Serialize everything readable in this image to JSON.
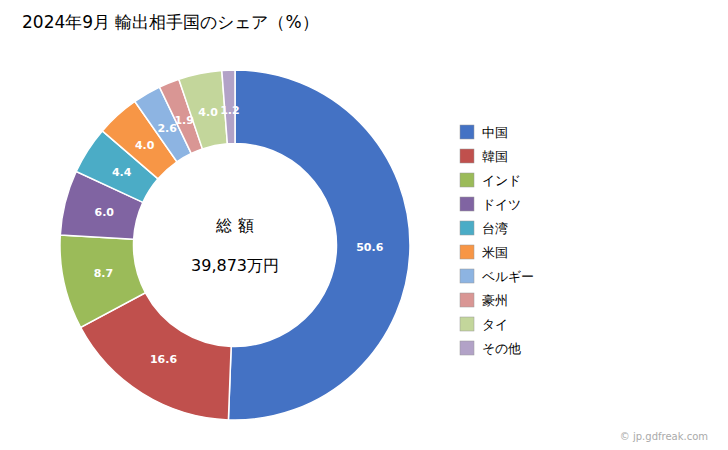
{
  "chart_data": {
    "type": "donut",
    "title": "2024年9月 輸出相手国のシェア（%）",
    "center_text": [
      "総 額",
      "39,873万円"
    ],
    "annotations": [
      "© jp.gdfreak.com"
    ],
    "categories": [
      "中国",
      "韓国",
      "インド",
      "ドイツ",
      "台湾",
      "米国",
      "ベルギー",
      "豪州",
      "タイ",
      "その他"
    ],
    "values": [
      50.6,
      16.6,
      8.7,
      6.0,
      4.4,
      4.0,
      2.6,
      1.9,
      4.0,
      1.2
    ],
    "value_labels": [
      "50.6",
      "16.6",
      "8.7",
      "6.0",
      "4.4",
      "4.0",
      "2.6",
      "1.9",
      "4.0",
      "1.2"
    ],
    "data_labels": true,
    "colors": [
      "#4472C4",
      "#C0504D",
      "#9BBB59",
      "#8064A2",
      "#4BACC6",
      "#F79646",
      "#8DB4E2",
      "#D99694",
      "#C3D69B",
      "#B2A2C7"
    ],
    "legend": "right"
  }
}
